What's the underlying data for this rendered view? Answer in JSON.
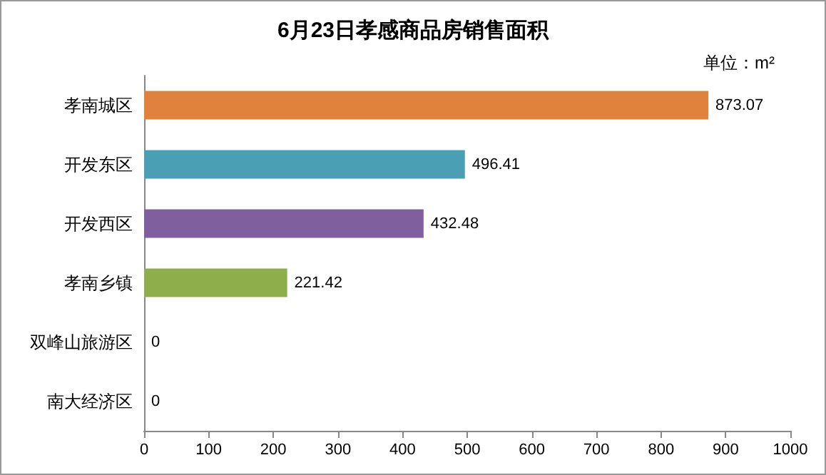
{
  "chart_data": {
    "type": "bar",
    "orientation": "horizontal",
    "title": "6月23日孝感商品房销售面积",
    "annotations": [
      "单位：m²"
    ],
    "categories": [
      "孝南城区",
      "开发东区",
      "开发西区",
      "孝南乡镇",
      "双峰山旅游区",
      "南大经济区"
    ],
    "values": [
      873.07,
      496.41,
      432.48,
      221.42,
      0,
      0
    ],
    "colors": [
      "#e0823d",
      "#4a9fb5",
      "#7f5f9e",
      "#8ead4b",
      "#8ead4b",
      "#8ead4b"
    ],
    "xlim": [
      0,
      1000
    ],
    "xticks": [
      0,
      100,
      200,
      300,
      400,
      500,
      600,
      700,
      800,
      900,
      1000
    ],
    "data_labels": true
  }
}
